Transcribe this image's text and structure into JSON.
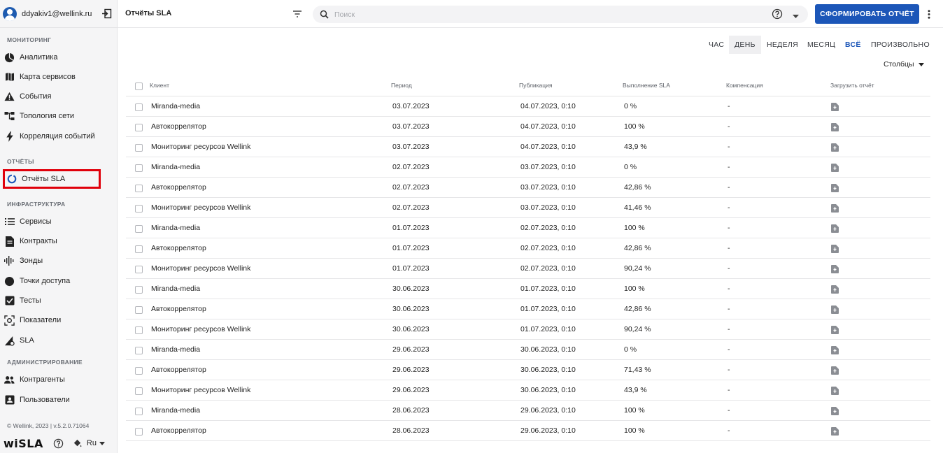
{
  "user": {
    "email": "ddyakiv1@wellink.ru"
  },
  "sidebar": {
    "sections": [
      {
        "label": "МОНИТОРИНГ",
        "items": [
          {
            "label": "Аналитика",
            "icon": "pie-chart-icon"
          },
          {
            "label": "Карта сервисов",
            "icon": "map-icon"
          },
          {
            "label": "События",
            "icon": "warning-icon"
          },
          {
            "label": "Топология сети",
            "icon": "topology-icon"
          },
          {
            "label": "Корреляция событий",
            "icon": "bolt-icon"
          }
        ]
      },
      {
        "label": "ОТЧЁТЫ",
        "items": [
          {
            "label": "Отчёты SLA",
            "icon": "sla-report-icon",
            "active": true
          }
        ]
      },
      {
        "label": "ИНФРАСТРУКТУРА",
        "items": [
          {
            "label": "Сервисы",
            "icon": "list-icon"
          },
          {
            "label": "Контракты",
            "icon": "document-icon"
          },
          {
            "label": "Зонды",
            "icon": "probe-icon"
          },
          {
            "label": "Точки доступа",
            "icon": "circle-icon"
          },
          {
            "label": "Тесты",
            "icon": "checkbox-icon"
          },
          {
            "label": "Показатели",
            "icon": "metrics-icon"
          },
          {
            "label": "SLA",
            "icon": "sla-icon"
          }
        ]
      },
      {
        "label": "АДМИНИСТРИРОВАНИЕ",
        "items": [
          {
            "label": "Контрагенты",
            "icon": "people-icon"
          },
          {
            "label": "Пользователи",
            "icon": "user-card-icon"
          }
        ]
      }
    ],
    "footer": {
      "copyright": "© Wellink, 2023 | v.5.2.0.71064",
      "logo": "wiSLA",
      "language": "Ru"
    }
  },
  "header": {
    "title": "Отчёты SLA",
    "search_placeholder": "Поиск",
    "generate_button": "СФОРМИРОВАТЬ ОТЧЁТ"
  },
  "period_tabs": [
    {
      "label": "ЧАС"
    },
    {
      "label": "ДЕНЬ",
      "selected": true
    },
    {
      "label": "НЕДЕЛЯ"
    },
    {
      "label": "МЕСЯЦ"
    },
    {
      "label": "ВСЁ",
      "highlighted": true
    },
    {
      "label": "ПРОИЗВОЛЬНО"
    }
  ],
  "columns_button": "Столбцы",
  "table": {
    "headers": [
      "Клиент",
      "Период",
      "Публикация",
      "Выполнение SLA",
      "Компенсация",
      "Загрузить отчёт"
    ],
    "rows": [
      [
        "Miranda-media",
        "03.07.2023",
        "04.07.2023, 0:10",
        "0 %",
        "-"
      ],
      [
        "Автокоррелятор",
        "03.07.2023",
        "04.07.2023, 0:10",
        "100 %",
        "-"
      ],
      [
        "Мониторинг ресурсов Wellink",
        "03.07.2023",
        "04.07.2023, 0:10",
        "43,9 %",
        "-"
      ],
      [
        "Miranda-media",
        "02.07.2023",
        "03.07.2023, 0:10",
        "0 %",
        "-"
      ],
      [
        "Автокоррелятор",
        "02.07.2023",
        "03.07.2023, 0:10",
        "42,86 %",
        "-"
      ],
      [
        "Мониторинг ресурсов Wellink",
        "02.07.2023",
        "03.07.2023, 0:10",
        "41,46 %",
        "-"
      ],
      [
        "Miranda-media",
        "01.07.2023",
        "02.07.2023, 0:10",
        "100 %",
        "-"
      ],
      [
        "Автокоррелятор",
        "01.07.2023",
        "02.07.2023, 0:10",
        "42,86 %",
        "-"
      ],
      [
        "Мониторинг ресурсов Wellink",
        "01.07.2023",
        "02.07.2023, 0:10",
        "90,24 %",
        "-"
      ],
      [
        "Miranda-media",
        "30.06.2023",
        "01.07.2023, 0:10",
        "100 %",
        "-"
      ],
      [
        "Автокоррелятор",
        "30.06.2023",
        "01.07.2023, 0:10",
        "42,86 %",
        "-"
      ],
      [
        "Мониторинг ресурсов Wellink",
        "30.06.2023",
        "01.07.2023, 0:10",
        "90,24 %",
        "-"
      ],
      [
        "Miranda-media",
        "29.06.2023",
        "30.06.2023, 0:10",
        "0 %",
        "-"
      ],
      [
        "Автокоррелятор",
        "29.06.2023",
        "30.06.2023, 0:10",
        "71,43 %",
        "-"
      ],
      [
        "Мониторинг ресурсов Wellink",
        "29.06.2023",
        "30.06.2023, 0:10",
        "43,9 %",
        "-"
      ],
      [
        "Miranda-media",
        "28.06.2023",
        "29.06.2023, 0:10",
        "100 %",
        "-"
      ],
      [
        "Автокоррелятор",
        "28.06.2023",
        "29.06.2023, 0:10",
        "100 %",
        "-"
      ]
    ]
  },
  "colors": {
    "accent": "#1c56b8",
    "active_outline": "#e0000b",
    "sidebar_bg": "#f5f5f6"
  }
}
